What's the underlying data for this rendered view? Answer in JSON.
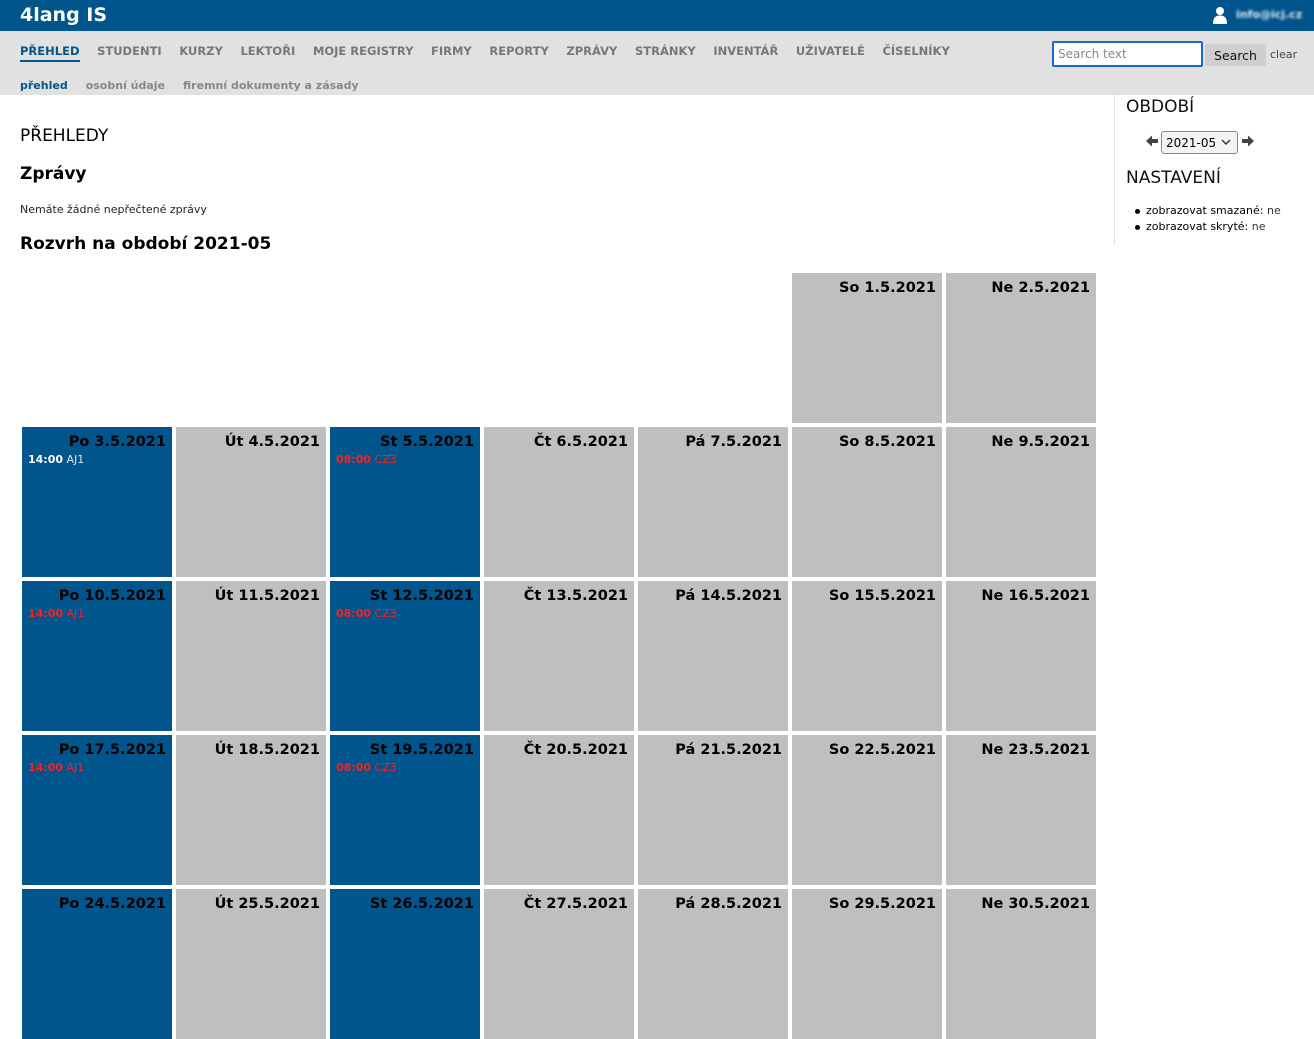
{
  "brand": "4lang IS",
  "user": {
    "email": "info@icj.cz"
  },
  "nav": {
    "main": [
      "PŘEHLED",
      "STUDENTI",
      "KURZY",
      "LEKTOŘI",
      "MOJE REGISTRY",
      "FIRMY",
      "REPORTY",
      "ZPRÁVY",
      "STRÁNKY",
      "INVENTÁŘ",
      "UŽIVATELÉ",
      "ČÍSELNÍKY"
    ],
    "active_main": "PŘEHLED",
    "sub": [
      "přehled",
      "osobní údaje",
      "firemní dokumenty a zásady"
    ],
    "active_sub": "přehled"
  },
  "search": {
    "placeholder": "Search text",
    "value": "",
    "button_label": "Search",
    "clear_label": "clear"
  },
  "content": {
    "page_title": "PŘEHLEDY",
    "messages_title": "Zprávy",
    "no_messages": "Nemáte žádné nepřečtené zprávy",
    "schedule_title": "Rozvrh na období 2021-05"
  },
  "sidebar": {
    "period_heading": "OBDOBÍ",
    "period_value": "2021-05",
    "settings_heading": "NASTAVENÍ",
    "settings": [
      {
        "label": "zobrazovat smazané:",
        "value": "ne"
      },
      {
        "label": "zobrazovat skryté:",
        "value": "ne"
      }
    ]
  },
  "colors": {
    "brand_blue": "#00558c",
    "cell_gray": "#bfbfbf",
    "nav_band": "#e1e1e1",
    "past_event": "#ffffff",
    "overdue_event": "#ff1e1e"
  },
  "calendar": {
    "weeks": [
      [
        null,
        null,
        null,
        null,
        null,
        {
          "label": "So 1.5.2021",
          "lesson": false,
          "events": []
        },
        {
          "label": "Ne 2.5.2021",
          "lesson": false,
          "events": []
        }
      ],
      [
        {
          "label": "Po 3.5.2021",
          "lesson": true,
          "events": [
            {
              "time": "14:00",
              "code": "AJ1",
              "color": "white"
            }
          ]
        },
        {
          "label": "Út 4.5.2021",
          "lesson": false,
          "events": []
        },
        {
          "label": "St 5.5.2021",
          "lesson": true,
          "events": [
            {
              "time": "08:00",
              "code": "CZ3",
              "color": "red"
            }
          ]
        },
        {
          "label": "Čt 6.5.2021",
          "lesson": false,
          "events": []
        },
        {
          "label": "Pá 7.5.2021",
          "lesson": false,
          "events": []
        },
        {
          "label": "So 8.5.2021",
          "lesson": false,
          "events": []
        },
        {
          "label": "Ne 9.5.2021",
          "lesson": false,
          "events": []
        }
      ],
      [
        {
          "label": "Po 10.5.2021",
          "lesson": true,
          "events": [
            {
              "time": "14:00",
              "code": "AJ1",
              "color": "red"
            }
          ]
        },
        {
          "label": "Út 11.5.2021",
          "lesson": false,
          "events": []
        },
        {
          "label": "St 12.5.2021",
          "lesson": true,
          "events": [
            {
              "time": "08:00",
              "code": "CZ3",
              "color": "red"
            }
          ]
        },
        {
          "label": "Čt 13.5.2021",
          "lesson": false,
          "events": []
        },
        {
          "label": "Pá 14.5.2021",
          "lesson": false,
          "events": []
        },
        {
          "label": "So 15.5.2021",
          "lesson": false,
          "events": []
        },
        {
          "label": "Ne 16.5.2021",
          "lesson": false,
          "events": []
        }
      ],
      [
        {
          "label": "Po 17.5.2021",
          "lesson": true,
          "events": [
            {
              "time": "14:00",
              "code": "AJ1",
              "color": "red"
            }
          ]
        },
        {
          "label": "Út 18.5.2021",
          "lesson": false,
          "events": []
        },
        {
          "label": "St 19.5.2021",
          "lesson": true,
          "events": [
            {
              "time": "08:00",
              "code": "CZ3",
              "color": "red"
            }
          ]
        },
        {
          "label": "Čt 20.5.2021",
          "lesson": false,
          "events": []
        },
        {
          "label": "Pá 21.5.2021",
          "lesson": false,
          "events": []
        },
        {
          "label": "So 22.5.2021",
          "lesson": false,
          "events": []
        },
        {
          "label": "Ne 23.5.2021",
          "lesson": false,
          "events": []
        }
      ],
      [
        {
          "label": "Po 24.5.2021",
          "lesson": true,
          "events": []
        },
        {
          "label": "Út 25.5.2021",
          "lesson": false,
          "events": []
        },
        {
          "label": "St 26.5.2021",
          "lesson": true,
          "events": []
        },
        {
          "label": "Čt 27.5.2021",
          "lesson": false,
          "events": []
        },
        {
          "label": "Pá 28.5.2021",
          "lesson": false,
          "events": []
        },
        {
          "label": "So 29.5.2021",
          "lesson": false,
          "events": []
        },
        {
          "label": "Ne 30.5.2021",
          "lesson": false,
          "events": []
        }
      ]
    ]
  }
}
